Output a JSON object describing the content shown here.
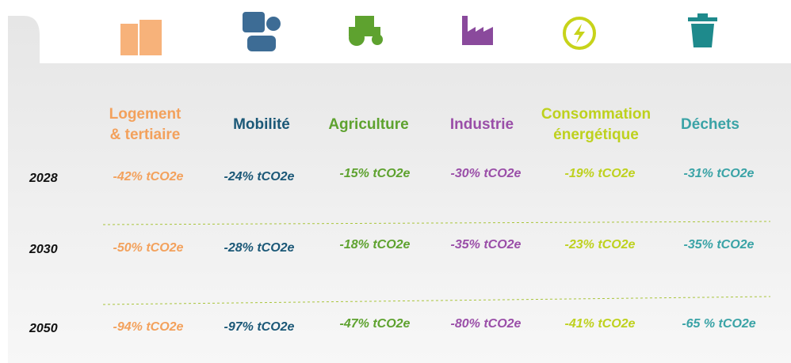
{
  "columns": [
    {
      "label": [
        "Logement",
        "& tertiaire"
      ],
      "color": "#f3a15c"
    },
    {
      "label": [
        "Mobilité"
      ],
      "color": "#1b5877"
    },
    {
      "label": [
        "Agriculture"
      ],
      "color": "#5ea22f"
    },
    {
      "label": [
        "Industrie"
      ],
      "color": "#9a4ea8"
    },
    {
      "label": [
        "Consommation",
        "énergétique"
      ],
      "color": "#bed11e"
    },
    {
      "label": [
        "Déchets"
      ],
      "color": "#3aa3a6"
    }
  ],
  "rows": [
    {
      "year": "2028",
      "values": [
        "-42% tCO2e",
        "-24% tCO2e",
        "-15% tCO2e",
        "-30% tCO2e",
        "-19% tCO2e",
        "-31% tCO2e"
      ]
    },
    {
      "year": "2030",
      "values": [
        "-50% tCO2e",
        "-28% tCO2e",
        "-18% tCO2e",
        "-35% tCO2e",
        "-23% tCO2e",
        "-35% tCO2e"
      ]
    },
    {
      "year": "2050",
      "values": [
        "-94% tCO2e",
        "-97% tCO2e",
        "-47% tCO2e",
        "-80% tCO2e",
        "-41% tCO2e",
        "-65 % tCO2e"
      ]
    }
  ]
}
